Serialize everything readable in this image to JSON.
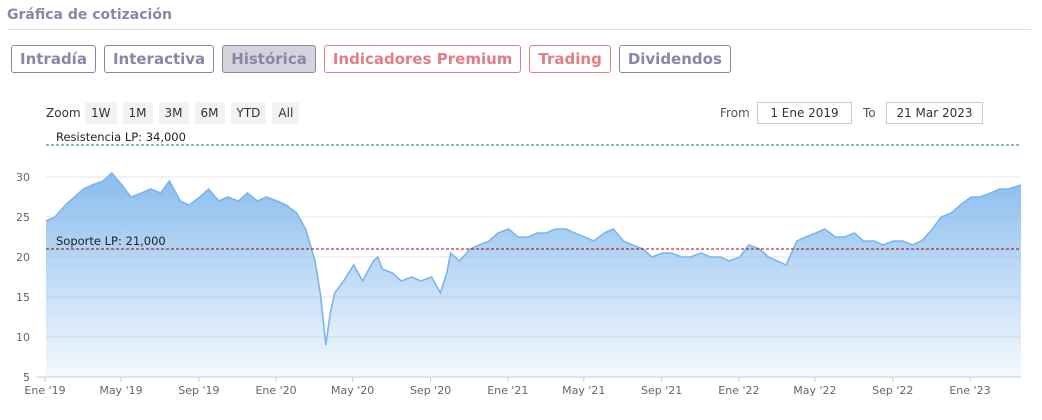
{
  "section_title": "Gráfica de cotización",
  "tabs": [
    {
      "label": "Intradía",
      "active": false,
      "premium": false
    },
    {
      "label": "Interactiva",
      "active": false,
      "premium": false
    },
    {
      "label": "Histórica",
      "active": true,
      "premium": false
    },
    {
      "label": "Indicadores Premium",
      "active": false,
      "premium": true
    },
    {
      "label": "Trading",
      "active": false,
      "premium": true
    },
    {
      "label": "Dividendos",
      "active": false,
      "premium": false
    }
  ],
  "toolbar": {
    "zoom_label": "Zoom",
    "range_buttons": [
      "1W",
      "1M",
      "3M",
      "6M",
      "YTD",
      "All"
    ],
    "from_label": "From",
    "from_value": "1 Ene 2019",
    "to_label": "To",
    "to_value": "21 Mar 2023"
  },
  "colors": {
    "accent": "#8d84a8",
    "premium": "#e07f86",
    "series": "#7cb5ec"
  },
  "chart_data": {
    "type": "area",
    "title": "",
    "xlabel": "",
    "ylabel": "",
    "x_ticks": [
      "Ene '19",
      "May '19",
      "Sep '19",
      "Ene '20",
      "May '20",
      "Sep '20",
      "Ene '21",
      "May '21",
      "Sep '21",
      "Ene '22",
      "May '22",
      "Sep '22",
      "Ene '23"
    ],
    "y_ticks": [
      5,
      10,
      15,
      20,
      25,
      30
    ],
    "xlim": [
      "2019-01-01",
      "2023-03-21"
    ],
    "ylim": [
      5,
      35
    ],
    "grid": true,
    "reference_lines": [
      {
        "label": "Resistencia LP: 34,000",
        "value": 34.0,
        "style": "dashed",
        "color": "#1e7b3c"
      },
      {
        "label": "Soporte LP: 21,000",
        "value": 21.0,
        "style": "dashed",
        "color": "#b30000"
      }
    ],
    "series": [
      {
        "x": [
          "2019-01-01",
          "2019-01-15",
          "2019-02-01",
          "2019-02-15",
          "2019-03-01",
          "2019-03-15",
          "2019-04-01",
          "2019-04-15",
          "2019-05-01",
          "2019-05-15",
          "2019-06-01",
          "2019-06-15",
          "2019-07-01",
          "2019-07-15",
          "2019-08-01",
          "2019-08-15",
          "2019-09-01",
          "2019-09-15",
          "2019-10-01",
          "2019-10-15",
          "2019-11-01",
          "2019-11-15",
          "2019-12-01",
          "2019-12-15",
          "2020-01-01",
          "2020-01-15",
          "2020-02-01",
          "2020-02-15",
          "2020-03-01",
          "2020-03-10",
          "2020-03-18",
          "2020-03-25",
          "2020-04-01",
          "2020-04-15",
          "2020-05-01",
          "2020-05-15",
          "2020-06-01",
          "2020-06-08",
          "2020-06-15",
          "2020-07-01",
          "2020-07-15",
          "2020-08-01",
          "2020-08-15",
          "2020-09-01",
          "2020-09-15",
          "2020-09-25",
          "2020-10-01",
          "2020-10-15",
          "2020-11-01",
          "2020-11-15",
          "2020-12-01",
          "2020-12-15",
          "2021-01-01",
          "2021-01-15",
          "2021-02-01",
          "2021-02-15",
          "2021-03-01",
          "2021-03-15",
          "2021-04-01",
          "2021-04-15",
          "2021-05-01",
          "2021-05-15",
          "2021-06-01",
          "2021-06-15",
          "2021-07-01",
          "2021-07-15",
          "2021-08-01",
          "2021-08-15",
          "2021-09-01",
          "2021-09-15",
          "2021-10-01",
          "2021-10-15",
          "2021-11-01",
          "2021-11-15",
          "2021-12-01",
          "2021-12-15",
          "2022-01-01",
          "2022-01-15",
          "2022-02-01",
          "2022-02-15",
          "2022-03-01",
          "2022-03-15",
          "2022-04-01",
          "2022-04-15",
          "2022-05-01",
          "2022-05-15",
          "2022-06-01",
          "2022-06-15",
          "2022-07-01",
          "2022-07-15",
          "2022-08-01",
          "2022-08-15",
          "2022-09-01",
          "2022-09-15",
          "2022-10-01",
          "2022-10-15",
          "2022-11-01",
          "2022-11-15",
          "2022-12-01",
          "2022-12-15",
          "2023-01-01",
          "2023-01-15",
          "2023-02-01",
          "2023-02-15",
          "2023-03-01",
          "2023-03-21"
        ],
        "y": [
          24.5,
          25.0,
          26.5,
          27.5,
          28.5,
          29.0,
          29.5,
          30.5,
          29.0,
          27.5,
          28.0,
          28.5,
          28.0,
          29.5,
          27.0,
          26.5,
          27.5,
          28.5,
          27.0,
          27.5,
          27.0,
          28.0,
          27.0,
          27.5,
          27.0,
          26.5,
          25.5,
          23.5,
          19.5,
          15.0,
          9.0,
          13.0,
          15.5,
          17.0,
          19.0,
          17.0,
          19.5,
          20.0,
          18.5,
          18.0,
          17.0,
          17.5,
          17.0,
          17.5,
          15.5,
          18.0,
          20.5,
          19.5,
          21.0,
          21.5,
          22.0,
          23.0,
          23.5,
          22.5,
          22.5,
          23.0,
          23.0,
          23.5,
          23.5,
          23.0,
          22.5,
          22.0,
          23.0,
          23.5,
          22.0,
          21.5,
          21.0,
          20.0,
          20.5,
          20.5,
          20.0,
          20.0,
          20.5,
          20.0,
          20.0,
          19.5,
          20.0,
          21.5,
          21.0,
          20.0,
          19.5,
          19.0,
          22.0,
          22.5,
          23.0,
          23.5,
          22.5,
          22.5,
          23.0,
          22.0,
          22.0,
          21.5,
          22.0,
          22.0,
          21.5,
          22.0,
          23.5,
          25.0,
          25.5,
          26.5,
          27.5,
          27.5,
          28.0,
          28.5,
          28.5,
          29.0
        ]
      }
    ]
  }
}
